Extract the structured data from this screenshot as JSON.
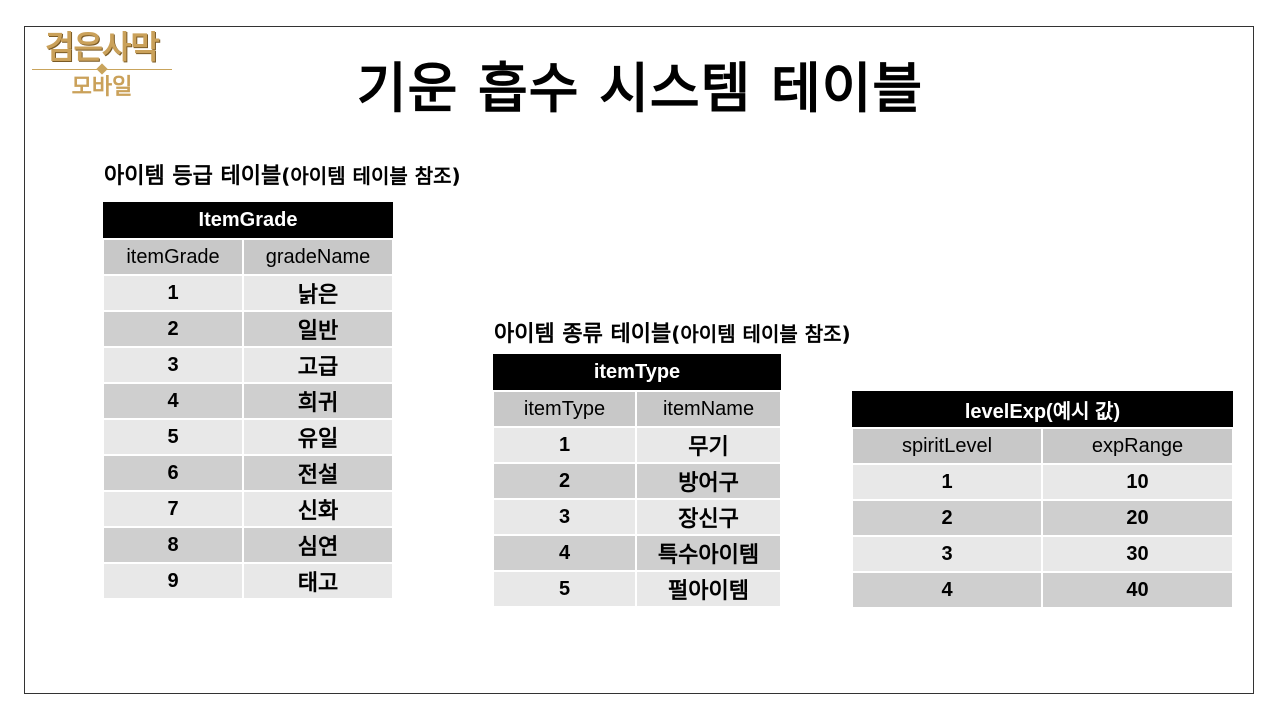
{
  "logo": {
    "main": "검은사막",
    "sub": "모바일"
  },
  "title": "기운 흡수 시스템 테이블",
  "grade_section": {
    "label": "아이템 등급 테이블",
    "paren": "(아이템 테이블 참조)"
  },
  "type_section": {
    "label": "아이템 종류 테이블",
    "paren": "(아이템 테이블 참조)"
  },
  "item_grade": {
    "caption": "ItemGrade",
    "headers": [
      "itemGrade",
      "gradeName"
    ],
    "rows": [
      [
        "1",
        "낡은"
      ],
      [
        "2",
        "일반"
      ],
      [
        "3",
        "고급"
      ],
      [
        "4",
        "희귀"
      ],
      [
        "5",
        "유일"
      ],
      [
        "6",
        "전설"
      ],
      [
        "7",
        "신화"
      ],
      [
        "8",
        "심연"
      ],
      [
        "9",
        "태고"
      ]
    ]
  },
  "item_type": {
    "caption": "itemType",
    "headers": [
      "itemType",
      "itemName"
    ],
    "rows": [
      [
        "1",
        "무기"
      ],
      [
        "2",
        "방어구"
      ],
      [
        "3",
        "장신구"
      ],
      [
        "4",
        "특수아이템"
      ],
      [
        "5",
        "펄아이템"
      ]
    ]
  },
  "level_exp": {
    "caption": "levelExp(예시 값)",
    "headers": [
      "spiritLevel",
      "expRange"
    ],
    "rows": [
      [
        "1",
        "10"
      ],
      [
        "2",
        "20"
      ],
      [
        "3",
        "30"
      ],
      [
        "4",
        "40"
      ]
    ]
  }
}
